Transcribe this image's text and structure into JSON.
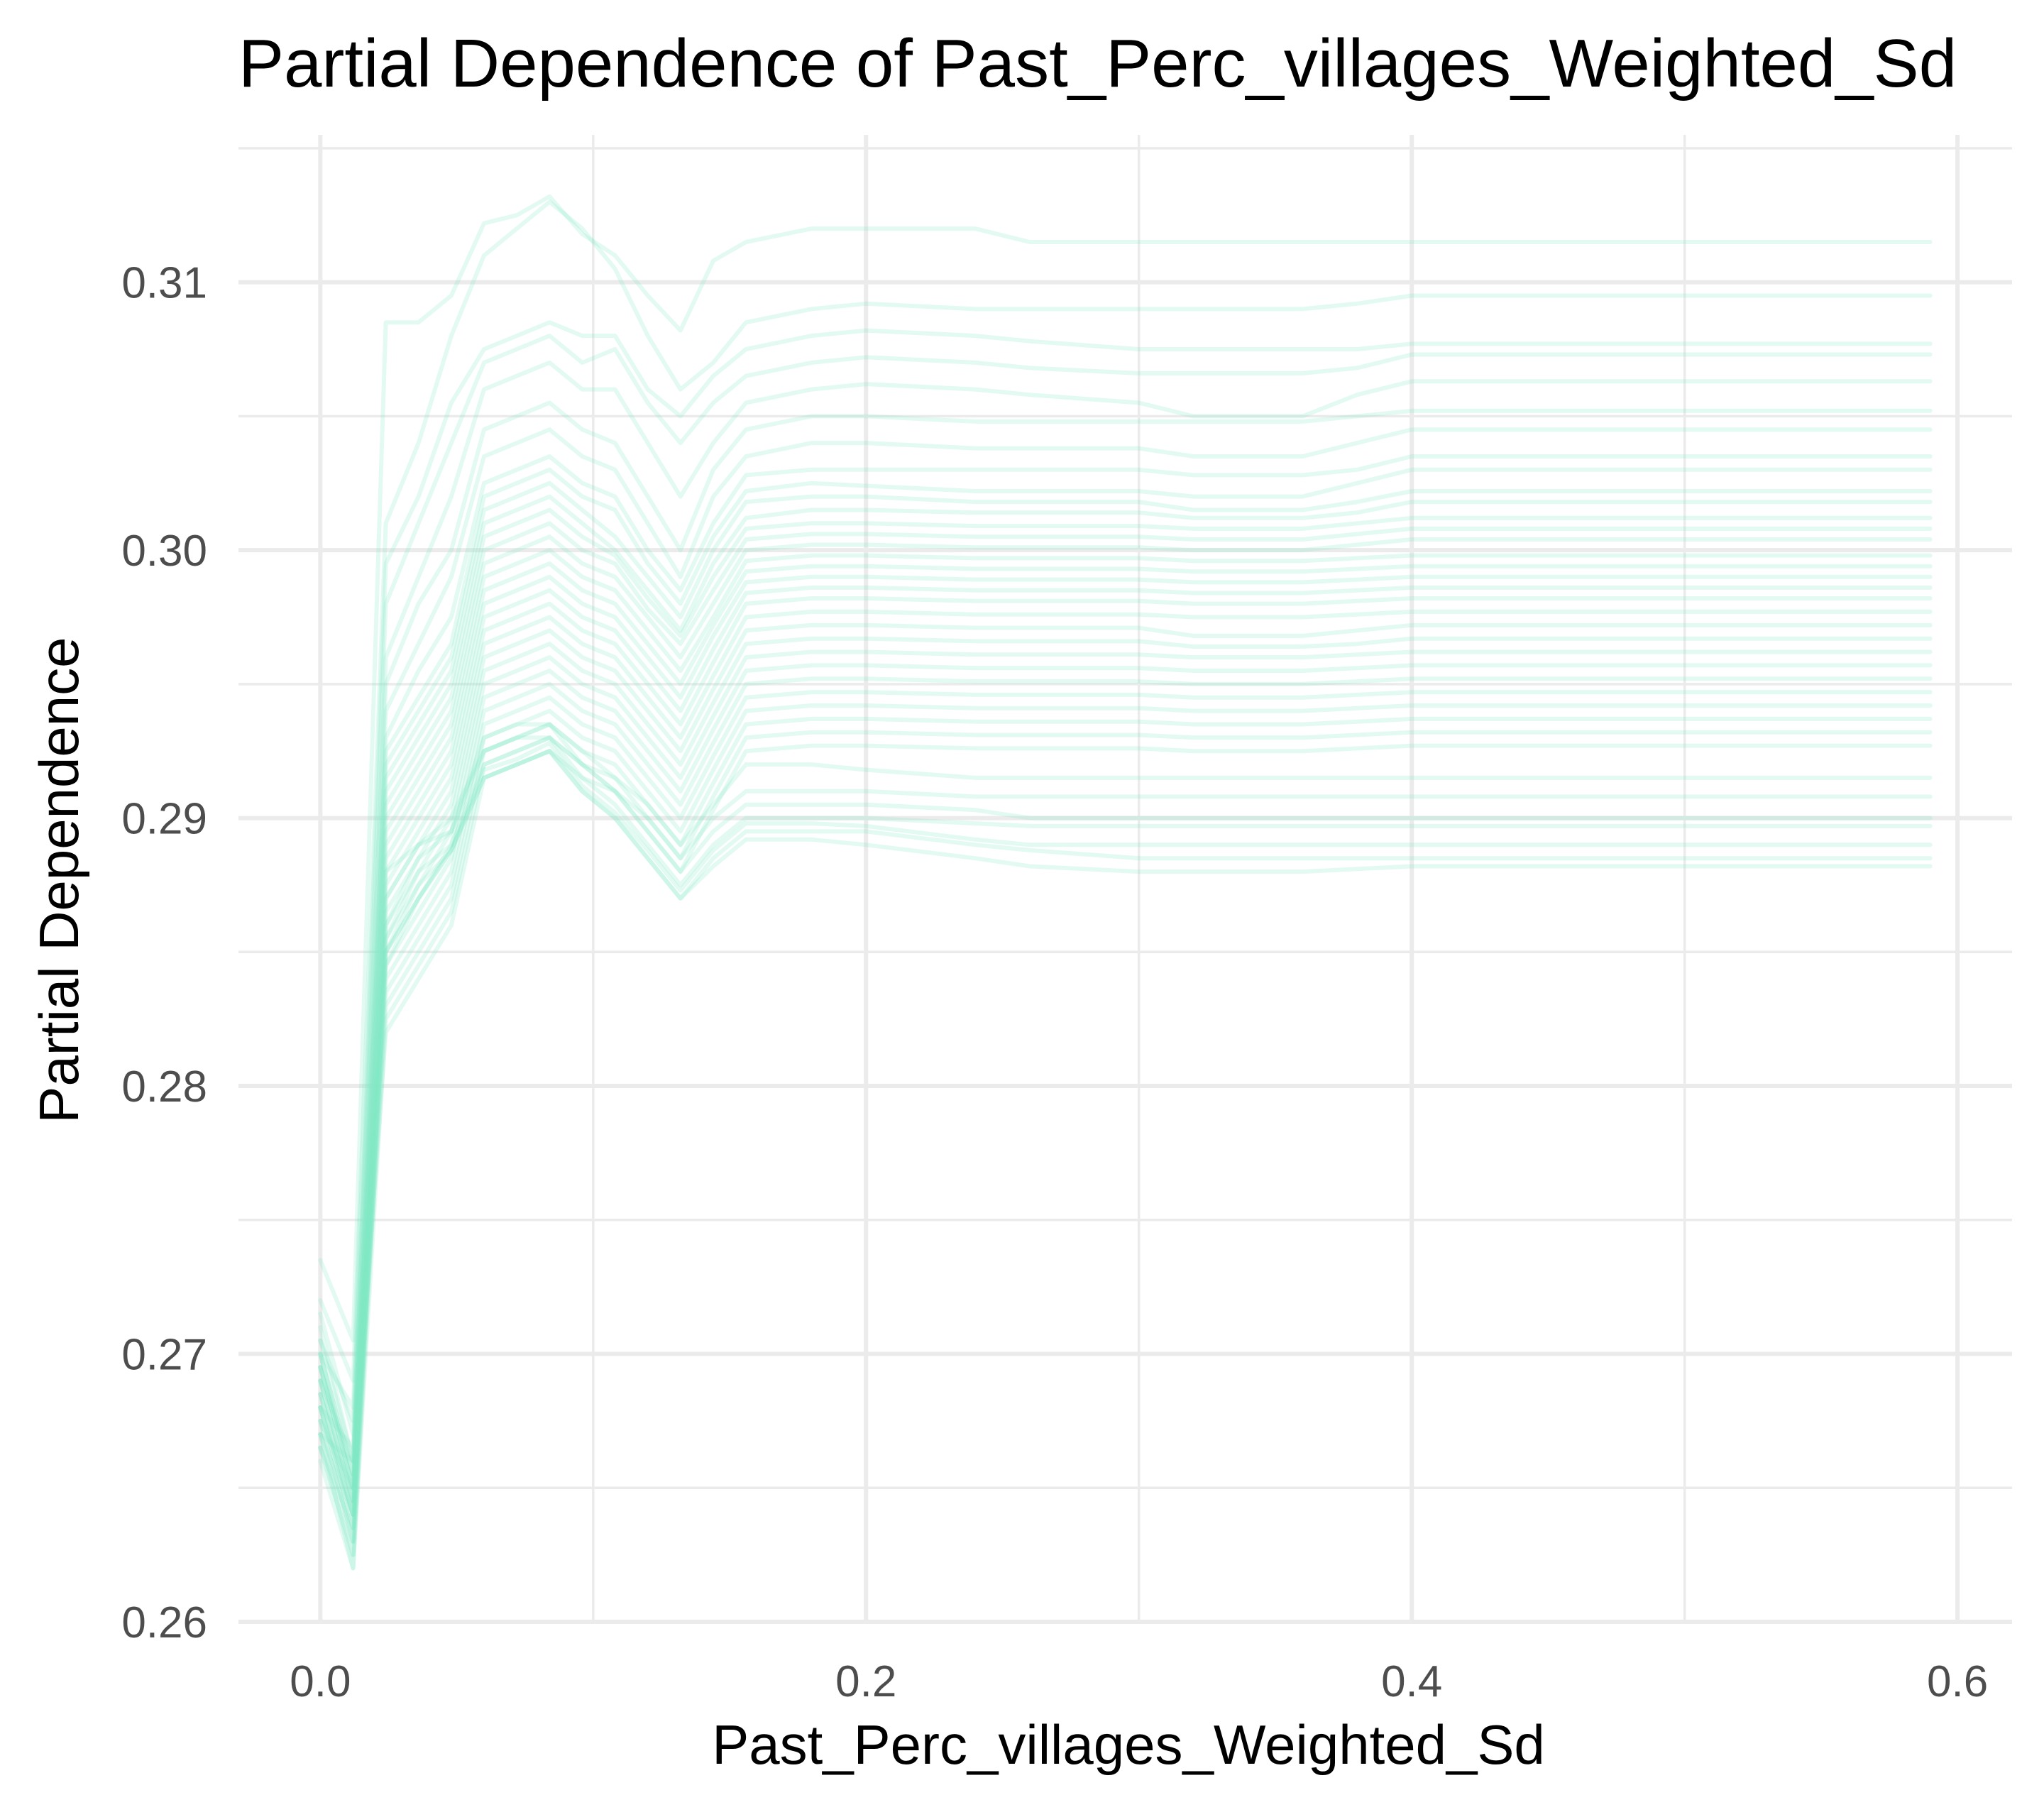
{
  "chart_data": {
    "type": "line",
    "title": "Partial Dependence of Past_Perc_villages_Weighted_Sd",
    "xlabel": "Past_Perc_villages_Weighted_Sd",
    "ylabel": "Partial Dependence",
    "xlim": [
      -0.03,
      0.62
    ],
    "ylim": [
      0.26,
      0.3155
    ],
    "x_ticks": [
      0.0,
      0.2,
      0.4,
      0.6
    ],
    "x_tick_labels": [
      "0.0",
      "0.2",
      "0.4",
      "0.6"
    ],
    "y_ticks": [
      0.26,
      0.27,
      0.28,
      0.29,
      0.3,
      0.31
    ],
    "y_tick_labels": [
      "0.26",
      "0.27",
      "0.28",
      "0.29",
      "0.30",
      "0.31"
    ],
    "grid": true,
    "line_color": "#7ee8c4",
    "line_opacity": 0.22,
    "x": [
      0.0,
      0.012,
      0.024,
      0.036,
      0.048,
      0.06,
      0.072,
      0.084,
      0.096,
      0.108,
      0.12,
      0.132,
      0.144,
      0.156,
      0.18,
      0.2,
      0.24,
      0.26,
      0.3,
      0.32,
      0.36,
      0.38,
      0.4,
      0.59
    ],
    "series": [
      {
        "values": [
          0.2735,
          0.2705,
          0.3085,
          0.3085,
          0.3095,
          0.3122,
          0.3125,
          0.3132,
          0.3118,
          0.311,
          0.3095,
          0.3082,
          0.3108,
          0.3115,
          0.312,
          0.312,
          0.312,
          0.3115,
          0.3115,
          0.3115,
          0.3115,
          0.3115,
          0.3115,
          0.3115
        ]
      },
      {
        "values": [
          0.272,
          0.269,
          0.301,
          0.304,
          0.308,
          0.311,
          0.312,
          0.313,
          0.312,
          0.3105,
          0.308,
          0.306,
          0.307,
          0.3085,
          0.309,
          0.3092,
          0.309,
          0.309,
          0.309,
          0.309,
          0.309,
          0.3092,
          0.3095,
          0.3095
        ]
      },
      {
        "values": [
          0.27,
          0.268,
          0.2995,
          0.302,
          0.3055,
          0.3075,
          0.308,
          0.3085,
          0.308,
          0.308,
          0.306,
          0.305,
          0.3065,
          0.3075,
          0.308,
          0.3082,
          0.308,
          0.3078,
          0.3075,
          0.3075,
          0.3075,
          0.3075,
          0.3077,
          0.3077
        ]
      },
      {
        "values": [
          0.2715,
          0.267,
          0.298,
          0.301,
          0.304,
          0.307,
          0.3075,
          0.308,
          0.307,
          0.3075,
          0.3055,
          0.304,
          0.3055,
          0.3065,
          0.307,
          0.3072,
          0.307,
          0.3068,
          0.3066,
          0.3066,
          0.3066,
          0.3068,
          0.3073,
          0.3073
        ]
      },
      {
        "values": [
          0.269,
          0.266,
          0.296,
          0.299,
          0.302,
          0.306,
          0.3065,
          0.307,
          0.306,
          0.306,
          0.304,
          0.302,
          0.304,
          0.3055,
          0.306,
          0.3062,
          0.306,
          0.3058,
          0.3055,
          0.305,
          0.305,
          0.3058,
          0.3063,
          0.3063
        ]
      },
      {
        "values": [
          0.2705,
          0.2675,
          0.295,
          0.298,
          0.3,
          0.3045,
          0.305,
          0.3055,
          0.3045,
          0.304,
          0.302,
          0.3,
          0.303,
          0.3045,
          0.305,
          0.305,
          0.3048,
          0.3048,
          0.3048,
          0.3048,
          0.3048,
          0.305,
          0.3052,
          0.3052
        ]
      },
      {
        "values": [
          0.268,
          0.2665,
          0.294,
          0.2965,
          0.299,
          0.3035,
          0.304,
          0.3045,
          0.3035,
          0.303,
          0.301,
          0.299,
          0.302,
          0.3035,
          0.304,
          0.304,
          0.3038,
          0.3038,
          0.3038,
          0.3035,
          0.3035,
          0.304,
          0.3045,
          0.3045
        ]
      },
      {
        "values": [
          0.27,
          0.2655,
          0.293,
          0.2955,
          0.2975,
          0.3025,
          0.303,
          0.3035,
          0.3025,
          0.302,
          0.3,
          0.2985,
          0.301,
          0.3028,
          0.303,
          0.303,
          0.303,
          0.303,
          0.303,
          0.3028,
          0.3028,
          0.303,
          0.3035,
          0.3035
        ]
      },
      {
        "values": [
          0.267,
          0.266,
          0.2925,
          0.2945,
          0.2965,
          0.302,
          0.3025,
          0.303,
          0.302,
          0.3015,
          0.2995,
          0.298,
          0.3005,
          0.3022,
          0.3025,
          0.3024,
          0.3022,
          0.3022,
          0.3022,
          0.302,
          0.302,
          0.3025,
          0.303,
          0.303
        ]
      },
      {
        "values": [
          0.2695,
          0.265,
          0.292,
          0.294,
          0.296,
          0.3015,
          0.302,
          0.3025,
          0.3015,
          0.3005,
          0.299,
          0.2975,
          0.3,
          0.3018,
          0.302,
          0.302,
          0.3018,
          0.3018,
          0.3018,
          0.3015,
          0.3015,
          0.3018,
          0.3022,
          0.3022
        ]
      },
      {
        "values": [
          0.2685,
          0.264,
          0.2915,
          0.2935,
          0.2955,
          0.301,
          0.3015,
          0.302,
          0.301,
          0.3,
          0.2985,
          0.297,
          0.2995,
          0.3012,
          0.3015,
          0.3015,
          0.3014,
          0.3014,
          0.3014,
          0.3012,
          0.3012,
          0.3014,
          0.3018,
          0.3018
        ]
      },
      {
        "values": [
          0.271,
          0.266,
          0.291,
          0.293,
          0.295,
          0.3005,
          0.301,
          0.3015,
          0.3005,
          0.2998,
          0.2982,
          0.2968,
          0.299,
          0.3008,
          0.301,
          0.301,
          0.3009,
          0.3009,
          0.3009,
          0.3008,
          0.3008,
          0.301,
          0.3012,
          0.3012
        ]
      },
      {
        "values": [
          0.2675,
          0.265,
          0.2905,
          0.2925,
          0.2945,
          0.3,
          0.3005,
          0.301,
          0.3,
          0.2995,
          0.2978,
          0.2965,
          0.2985,
          0.3004,
          0.3006,
          0.3006,
          0.3005,
          0.3005,
          0.3005,
          0.3004,
          0.3004,
          0.3006,
          0.3008,
          0.3008
        ]
      },
      {
        "values": [
          0.269,
          0.2645,
          0.29,
          0.292,
          0.294,
          0.2995,
          0.3,
          0.3005,
          0.2995,
          0.299,
          0.2975,
          0.296,
          0.298,
          0.3,
          0.3002,
          0.3002,
          0.3001,
          0.3001,
          0.3001,
          0.3,
          0.3,
          0.3002,
          0.3004,
          0.3004
        ]
      },
      {
        "values": [
          0.27,
          0.2655,
          0.2895,
          0.2915,
          0.2935,
          0.299,
          0.2995,
          0.3,
          0.299,
          0.2985,
          0.297,
          0.2955,
          0.2975,
          0.2996,
          0.2998,
          0.2998,
          0.2997,
          0.2997,
          0.2997,
          0.2996,
          0.2996,
          0.2997,
          0.2998,
          0.2998
        ]
      },
      {
        "values": [
          0.268,
          0.264,
          0.289,
          0.291,
          0.293,
          0.2985,
          0.299,
          0.2995,
          0.2985,
          0.298,
          0.2965,
          0.295,
          0.2972,
          0.2992,
          0.2994,
          0.2994,
          0.2993,
          0.2993,
          0.2993,
          0.2992,
          0.2992,
          0.2993,
          0.2994,
          0.2994
        ]
      },
      {
        "values": [
          0.2695,
          0.265,
          0.2885,
          0.2905,
          0.2925,
          0.298,
          0.2985,
          0.299,
          0.298,
          0.2975,
          0.296,
          0.2945,
          0.2968,
          0.2988,
          0.299,
          0.299,
          0.2989,
          0.2989,
          0.2989,
          0.2988,
          0.2988,
          0.2989,
          0.299,
          0.299
        ]
      },
      {
        "values": [
          0.2665,
          0.2635,
          0.288,
          0.29,
          0.292,
          0.2975,
          0.298,
          0.2985,
          0.2975,
          0.297,
          0.2955,
          0.294,
          0.2963,
          0.2984,
          0.2986,
          0.2986,
          0.2985,
          0.2985,
          0.2985,
          0.2984,
          0.2984,
          0.2985,
          0.2986,
          0.2986
        ]
      },
      {
        "values": [
          0.2705,
          0.266,
          0.2875,
          0.2895,
          0.2915,
          0.297,
          0.2975,
          0.298,
          0.297,
          0.2965,
          0.295,
          0.2935,
          0.2958,
          0.298,
          0.2982,
          0.2982,
          0.2981,
          0.2981,
          0.2981,
          0.298,
          0.298,
          0.2981,
          0.2982,
          0.2982
        ]
      },
      {
        "values": [
          0.2685,
          0.2645,
          0.287,
          0.289,
          0.291,
          0.2965,
          0.297,
          0.2975,
          0.2965,
          0.296,
          0.2945,
          0.293,
          0.2953,
          0.2975,
          0.2977,
          0.2977,
          0.2976,
          0.2976,
          0.2976,
          0.2975,
          0.2975,
          0.2976,
          0.2977,
          0.2977
        ]
      },
      {
        "values": [
          0.267,
          0.264,
          0.2865,
          0.2885,
          0.2905,
          0.296,
          0.2965,
          0.297,
          0.296,
          0.2955,
          0.294,
          0.2925,
          0.2948,
          0.297,
          0.2972,
          0.2972,
          0.2971,
          0.2971,
          0.2971,
          0.2968,
          0.2968,
          0.297,
          0.2972,
          0.2972
        ]
      },
      {
        "values": [
          0.2695,
          0.2655,
          0.286,
          0.288,
          0.29,
          0.2955,
          0.296,
          0.2965,
          0.2955,
          0.295,
          0.2935,
          0.292,
          0.2943,
          0.2965,
          0.2967,
          0.2967,
          0.2966,
          0.2966,
          0.2966,
          0.2964,
          0.2964,
          0.2965,
          0.2967,
          0.2967
        ]
      },
      {
        "values": [
          0.268,
          0.2635,
          0.2855,
          0.2875,
          0.2895,
          0.295,
          0.2955,
          0.296,
          0.295,
          0.2945,
          0.293,
          0.2915,
          0.2938,
          0.296,
          0.2962,
          0.2962,
          0.2961,
          0.2961,
          0.2961,
          0.296,
          0.296,
          0.2961,
          0.2962,
          0.2962
        ]
      },
      {
        "values": [
          0.27,
          0.265,
          0.285,
          0.287,
          0.289,
          0.2945,
          0.295,
          0.2955,
          0.2945,
          0.294,
          0.2925,
          0.291,
          0.2933,
          0.2955,
          0.2957,
          0.2957,
          0.2956,
          0.2956,
          0.2956,
          0.2955,
          0.2955,
          0.2956,
          0.2957,
          0.2957
        ]
      },
      {
        "values": [
          0.2675,
          0.263,
          0.2845,
          0.2865,
          0.2885,
          0.294,
          0.2945,
          0.295,
          0.294,
          0.2935,
          0.292,
          0.2905,
          0.2928,
          0.295,
          0.2952,
          0.2952,
          0.2951,
          0.2951,
          0.2951,
          0.295,
          0.295,
          0.2951,
          0.2952,
          0.2952
        ]
      },
      {
        "values": [
          0.269,
          0.2645,
          0.284,
          0.286,
          0.288,
          0.2935,
          0.294,
          0.2945,
          0.2935,
          0.293,
          0.2915,
          0.29,
          0.2923,
          0.2945,
          0.2947,
          0.2947,
          0.2946,
          0.2946,
          0.2946,
          0.2945,
          0.2945,
          0.2946,
          0.2947,
          0.2947
        ]
      },
      {
        "values": [
          0.2665,
          0.2625,
          0.2835,
          0.2855,
          0.2875,
          0.293,
          0.2935,
          0.294,
          0.293,
          0.2925,
          0.291,
          0.2895,
          0.2918,
          0.294,
          0.2942,
          0.2942,
          0.2941,
          0.2941,
          0.2941,
          0.294,
          0.294,
          0.2941,
          0.2942,
          0.2942
        ]
      },
      {
        "values": [
          0.2685,
          0.264,
          0.283,
          0.285,
          0.287,
          0.2925,
          0.293,
          0.2935,
          0.2925,
          0.292,
          0.2905,
          0.289,
          0.2913,
          0.2935,
          0.2937,
          0.2937,
          0.2936,
          0.2936,
          0.2936,
          0.2935,
          0.2935,
          0.2936,
          0.2937,
          0.2937
        ]
      },
      {
        "values": [
          0.267,
          0.262,
          0.2825,
          0.2845,
          0.2865,
          0.292,
          0.2925,
          0.293,
          0.292,
          0.2915,
          0.29,
          0.2885,
          0.2908,
          0.293,
          0.2932,
          0.2932,
          0.2931,
          0.2931,
          0.2931,
          0.293,
          0.293,
          0.2931,
          0.2932,
          0.2932
        ]
      },
      {
        "values": [
          0.2695,
          0.265,
          0.282,
          0.284,
          0.286,
          0.2915,
          0.292,
          0.2925,
          0.2915,
          0.291,
          0.2895,
          0.288,
          0.2903,
          0.2925,
          0.2927,
          0.2927,
          0.2926,
          0.2926,
          0.2926,
          0.2925,
          0.2925,
          0.2926,
          0.2927,
          0.2927
        ]
      },
      {
        "values": [
          0.268,
          0.2635,
          0.288,
          0.289,
          0.2895,
          0.293,
          0.2935,
          0.2935,
          0.2925,
          0.2915,
          0.2905,
          0.289,
          0.2905,
          0.292,
          0.292,
          0.2918,
          0.2915,
          0.2915,
          0.2915,
          0.2915,
          0.2915,
          0.2915,
          0.2915,
          0.2915
        ]
      },
      {
        "values": [
          0.2675,
          0.263,
          0.287,
          0.289,
          0.29,
          0.2925,
          0.293,
          0.293,
          0.292,
          0.291,
          0.29,
          0.2885,
          0.29,
          0.291,
          0.291,
          0.291,
          0.2908,
          0.2908,
          0.2908,
          0.2908,
          0.2908,
          0.2908,
          0.2908,
          0.2908
        ]
      },
      {
        "values": [
          0.269,
          0.2645,
          0.286,
          0.2885,
          0.2895,
          0.2925,
          0.293,
          0.2935,
          0.292,
          0.291,
          0.2895,
          0.288,
          0.2895,
          0.2905,
          0.2905,
          0.2905,
          0.2903,
          0.29,
          0.29,
          0.29,
          0.29,
          0.29,
          0.29,
          0.29
        ]
      },
      {
        "values": [
          0.2665,
          0.2625,
          0.2855,
          0.288,
          0.289,
          0.292,
          0.2925,
          0.293,
          0.2915,
          0.2905,
          0.289,
          0.2875,
          0.289,
          0.29,
          0.29,
          0.29,
          0.2898,
          0.2897,
          0.2897,
          0.2897,
          0.2897,
          0.2897,
          0.2897,
          0.2897
        ]
      },
      {
        "values": [
          0.268,
          0.264,
          0.285,
          0.2875,
          0.2888,
          0.2918,
          0.2922,
          0.2928,
          0.2912,
          0.2902,
          0.2888,
          0.2873,
          0.2888,
          0.2898,
          0.2898,
          0.2897,
          0.2892,
          0.289,
          0.289,
          0.289,
          0.289,
          0.289,
          0.289,
          0.289
        ]
      },
      {
        "values": [
          0.267,
          0.263,
          0.285,
          0.287,
          0.2888,
          0.2915,
          0.292,
          0.2925,
          0.291,
          0.29,
          0.2885,
          0.287,
          0.2885,
          0.2895,
          0.2895,
          0.2895,
          0.289,
          0.2888,
          0.2885,
          0.2885,
          0.2885,
          0.2885,
          0.2885,
          0.2885
        ]
      },
      {
        "values": [
          0.266,
          0.262,
          0.2845,
          0.287,
          0.2888,
          0.2915,
          0.292,
          0.2925,
          0.291,
          0.29,
          0.2885,
          0.287,
          0.2882,
          0.2892,
          0.2892,
          0.289,
          0.2885,
          0.2882,
          0.288,
          0.288,
          0.288,
          0.2881,
          0.2882,
          0.2882
        ]
      }
    ]
  }
}
